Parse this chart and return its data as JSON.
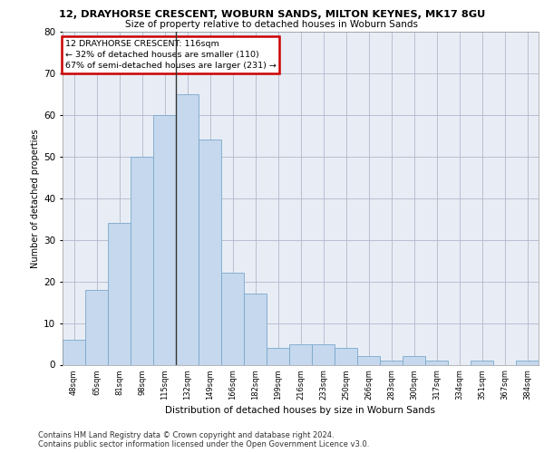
{
  "title1": "12, DRAYHORSE CRESCENT, WOBURN SANDS, MILTON KEYNES, MK17 8GU",
  "title2": "Size of property relative to detached houses in Woburn Sands",
  "xlabel": "Distribution of detached houses by size in Woburn Sands",
  "ylabel": "Number of detached properties",
  "categories": [
    "48sqm",
    "65sqm",
    "81sqm",
    "98sqm",
    "115sqm",
    "132sqm",
    "149sqm",
    "166sqm",
    "182sqm",
    "199sqm",
    "216sqm",
    "233sqm",
    "250sqm",
    "266sqm",
    "283sqm",
    "300sqm",
    "317sqm",
    "334sqm",
    "351sqm",
    "367sqm",
    "384sqm"
  ],
  "values": [
    6,
    18,
    34,
    50,
    60,
    65,
    54,
    22,
    17,
    4,
    5,
    5,
    4,
    2,
    1,
    2,
    1,
    0,
    1,
    0,
    1
  ],
  "bar_color": "#c5d8ed",
  "bar_edge_color": "#7aa8cc",
  "vline_index": 4,
  "vline_color": "#333333",
  "annotation_text": "12 DRAYHORSE CRESCENT: 116sqm\n← 32% of detached houses are smaller (110)\n67% of semi-detached houses are larger (231) →",
  "annotation_box_color": "#ffffff",
  "annotation_box_edge": "#cc0000",
  "ylim": [
    0,
    80
  ],
  "yticks": [
    0,
    10,
    20,
    30,
    40,
    50,
    60,
    70,
    80
  ],
  "grid_color": "#b0b8cc",
  "background_color": "#e8edf5",
  "footnote1": "Contains HM Land Registry data © Crown copyright and database right 2024.",
  "footnote2": "Contains public sector information licensed under the Open Government Licence v3.0."
}
